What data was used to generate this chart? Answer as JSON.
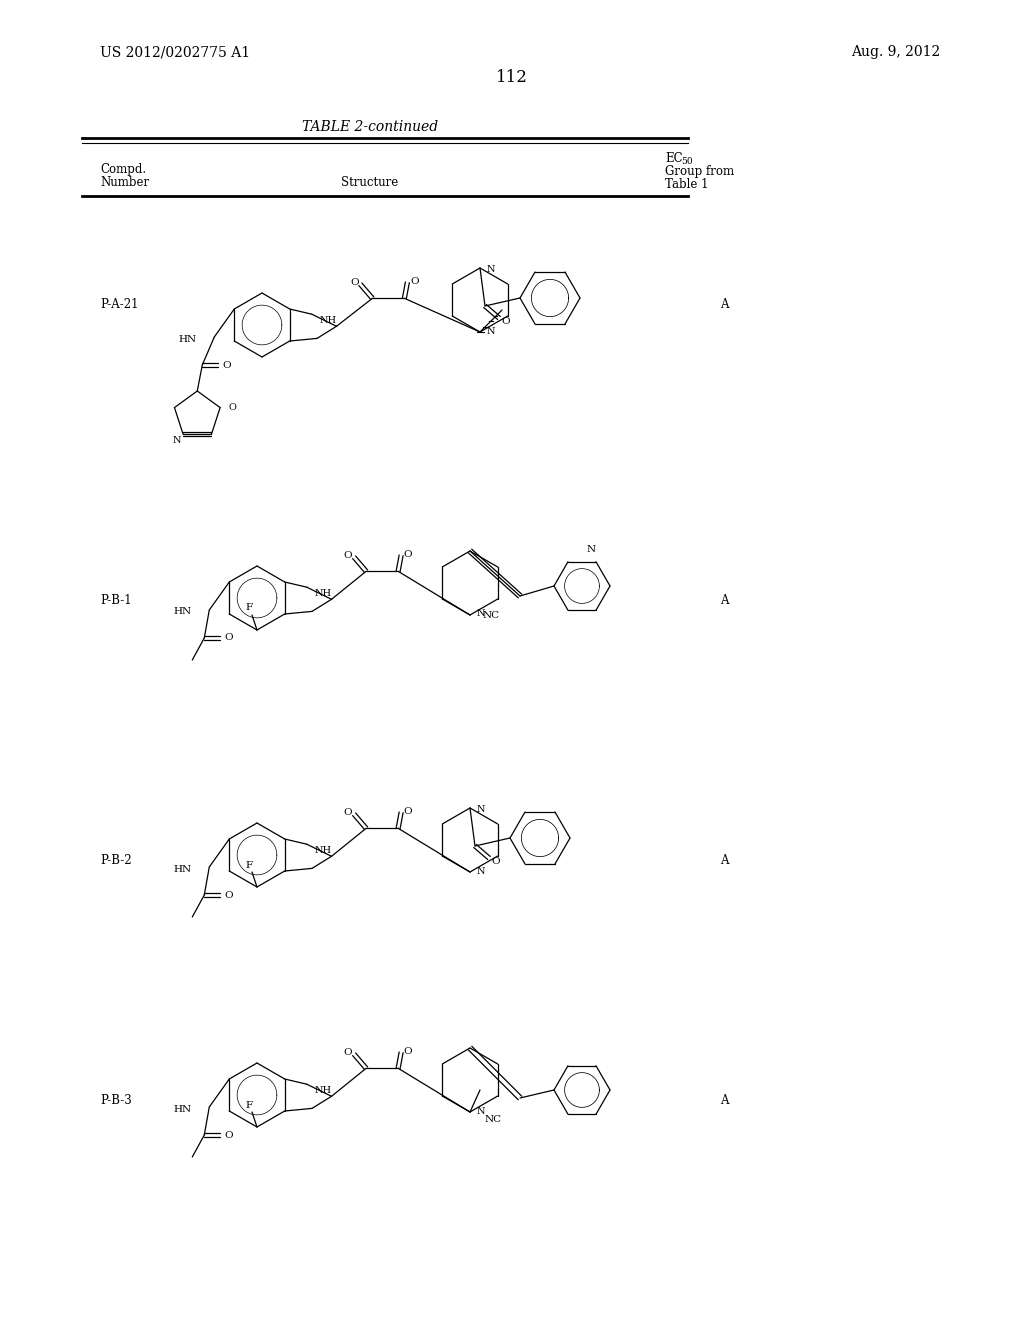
{
  "background_color": "#ffffff",
  "page_number": "112",
  "header_left": "US 2012/0202775 A1",
  "header_right": "Aug. 9, 2012",
  "table_title": "TABLE 2-continued",
  "compounds": [
    "P-A-21",
    "P-B-1",
    "P-B-2",
    "P-B-3"
  ],
  "ec50_groups": [
    "A",
    "A",
    "A",
    "A"
  ],
  "col1_header": [
    "Compd.",
    "Number"
  ],
  "col2_header": "Structure",
  "col3_header": [
    "EC",
    "50",
    "Group from",
    "Table 1"
  ]
}
